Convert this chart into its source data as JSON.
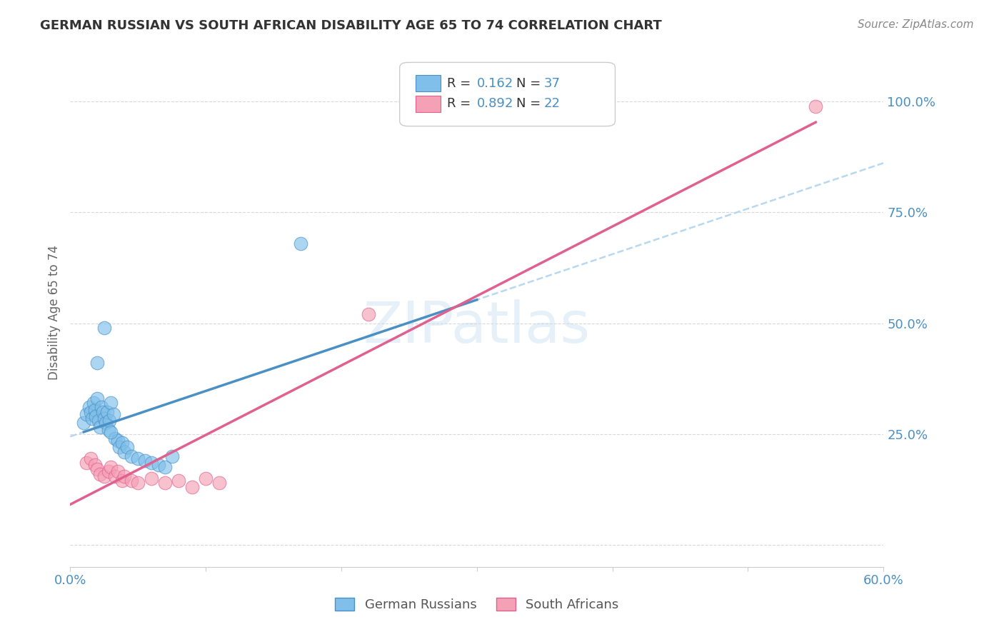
{
  "title": "GERMAN RUSSIAN VS SOUTH AFRICAN DISABILITY AGE 65 TO 74 CORRELATION CHART",
  "source": "Source: ZipAtlas.com",
  "ylabel": "Disability Age 65 to 74",
  "xlim": [
    0.0,
    0.6
  ],
  "ylim": [
    -0.05,
    1.1
  ],
  "xticks": [
    0.0,
    0.1,
    0.2,
    0.3,
    0.4,
    0.5,
    0.6
  ],
  "xticklabels": [
    "0.0%",
    "",
    "",
    "",
    "",
    "",
    "60.0%"
  ],
  "yticks": [
    0.0,
    0.25,
    0.5,
    0.75,
    1.0
  ],
  "yticklabels": [
    "",
    "25.0%",
    "50.0%",
    "75.0%",
    "100.0%"
  ],
  "legend_R1": "R =  0.162",
  "legend_N1": "N = 37",
  "legend_R2": "R =  0.892",
  "legend_N2": "N = 22",
  "color_blue": "#7fbfea",
  "color_pink": "#f4a0b5",
  "color_line_blue": "#4a90c4",
  "color_line_pink": "#e06090",
  "color_trendline_blue_dash": "#b0d4ee",
  "color_trendline_blue_solid": "#4a90c4",
  "color_trendline_pink_solid": "#e06090",
  "watermark": "ZIPatlas",
  "gr_x": [
    0.01,
    0.012,
    0.014,
    0.015,
    0.016,
    0.017,
    0.018,
    0.019,
    0.02,
    0.021,
    0.022,
    0.023,
    0.024,
    0.025,
    0.026,
    0.027,
    0.028,
    0.029,
    0.03,
    0.032,
    0.033,
    0.035,
    0.036,
    0.038,
    0.04,
    0.042,
    0.045,
    0.05,
    0.055,
    0.06,
    0.065,
    0.07,
    0.075,
    0.17,
    0.03,
    0.025,
    0.02
  ],
  "gr_y": [
    0.275,
    0.295,
    0.31,
    0.3,
    0.285,
    0.32,
    0.305,
    0.29,
    0.33,
    0.28,
    0.265,
    0.31,
    0.3,
    0.285,
    0.275,
    0.3,
    0.26,
    0.28,
    0.32,
    0.295,
    0.24,
    0.235,
    0.22,
    0.23,
    0.21,
    0.22,
    0.2,
    0.195,
    0.19,
    0.185,
    0.18,
    0.175,
    0.2,
    0.68,
    0.255,
    0.49,
    0.41
  ],
  "sa_x": [
    0.012,
    0.015,
    0.018,
    0.02,
    0.022,
    0.025,
    0.028,
    0.03,
    0.033,
    0.035,
    0.038,
    0.04,
    0.045,
    0.05,
    0.06,
    0.07,
    0.08,
    0.09,
    0.1,
    0.11,
    0.22,
    0.55
  ],
  "sa_y": [
    0.185,
    0.195,
    0.18,
    0.17,
    0.16,
    0.155,
    0.165,
    0.175,
    0.155,
    0.165,
    0.145,
    0.155,
    0.145,
    0.14,
    0.15,
    0.14,
    0.145,
    0.13,
    0.15,
    0.14,
    0.52,
    0.99
  ],
  "background_color": "#ffffff",
  "grid_color": "#d0d0d0"
}
